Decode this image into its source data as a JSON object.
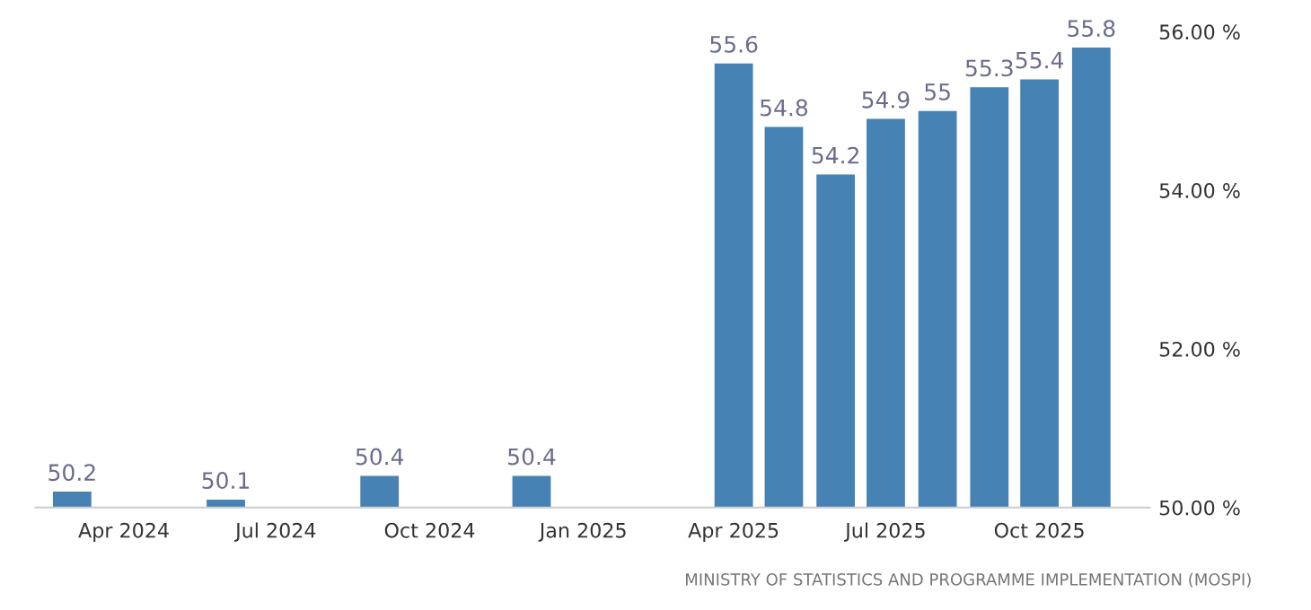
{
  "chart_data": {
    "type": "bar",
    "x": [
      "2024-03",
      "2024-06",
      "2024-09",
      "2024-12",
      "2025-04",
      "2025-05",
      "2025-06",
      "2025-07",
      "2025-08",
      "2025-09",
      "2025-10",
      "2025-11"
    ],
    "values": [
      50.2,
      50.1,
      50.4,
      50.4,
      55.6,
      54.8,
      54.2,
      54.9,
      55,
      55.3,
      55.4,
      55.8
    ],
    "color": "#4682b4",
    "data_labels": true,
    "xlim": [
      "2024-02-08",
      "2025-12-06"
    ],
    "xticks": [
      {
        "value": "2024-04",
        "label": "Apr 2024"
      },
      {
        "value": "2024-07",
        "label": "Jul 2024"
      },
      {
        "value": "2024-10",
        "label": "Oct 2024"
      },
      {
        "value": "2025-01",
        "label": "Jan 2025"
      },
      {
        "value": "2025-04",
        "label": "Apr 2025"
      },
      {
        "value": "2025-07",
        "label": "Jul 2025"
      },
      {
        "value": "2025-10",
        "label": "Oct 2025"
      }
    ],
    "ylim": [
      50,
      56
    ],
    "yticks": [
      {
        "value": 50,
        "label": "50.00 %"
      },
      {
        "value": 52,
        "label": "52.00 %"
      },
      {
        "value": 54,
        "label": "54.00 %"
      },
      {
        "value": 56,
        "label": "56.00 %"
      }
    ],
    "annotations": [
      "MINISTRY OF STATISTICS AND PROGRAMME IMPLEMENTATION (MOSPI)"
    ]
  }
}
